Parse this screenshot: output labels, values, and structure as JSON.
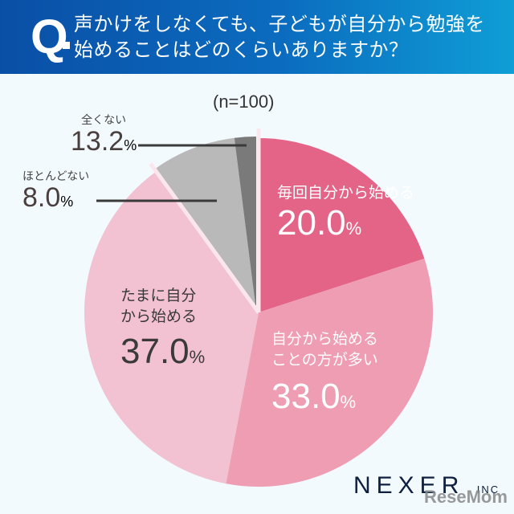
{
  "header": {
    "q_mark": "Q",
    "question": "声かけをしなくても、子どもが自分から勉強を\n始めることはどのくらいありますか？"
  },
  "sample": "(n=100)",
  "chart_data": {
    "type": "pie",
    "title": "声かけをしなくても、子どもが自分から勉強を始めることはどのくらいありますか？",
    "sample_size": "n=100",
    "categories": [
      "毎回自分から始める",
      "自分から始めることの方が多い",
      "たまに自分から始める",
      "ほとんどない",
      "全くない"
    ],
    "values": [
      20.0,
      33.0,
      37.0,
      8.0,
      13.2
    ],
    "value_labels": [
      "20.0%",
      "33.0%",
      "37.0%",
      "8.0%",
      "13.2%"
    ],
    "colors": [
      "#e46488",
      "#ee9db3",
      "#f2c1d2",
      "#b9b9b9",
      "#7a7a7a"
    ],
    "start_angle": "12 o'clock",
    "direction": "clockwise"
  },
  "labels": {
    "every_time": {
      "name": "毎回自分から始める",
      "value": "20.0",
      "unit": "%"
    },
    "more_often": {
      "name": "自分から始める\nことの方が多い",
      "value": "33.0",
      "unit": "%"
    },
    "sometimes": {
      "name": "たまに自分\nから始める",
      "value": "37.0",
      "unit": "%"
    },
    "rarely": {
      "name": "ほとんどない",
      "value": "8.0",
      "unit": "%"
    },
    "never": {
      "name": "全くない",
      "value": "13.2",
      "unit": "%"
    }
  },
  "footer": {
    "logo": "NEXER",
    "logo_suffix": "INC",
    "watermark": "ReseMom"
  }
}
